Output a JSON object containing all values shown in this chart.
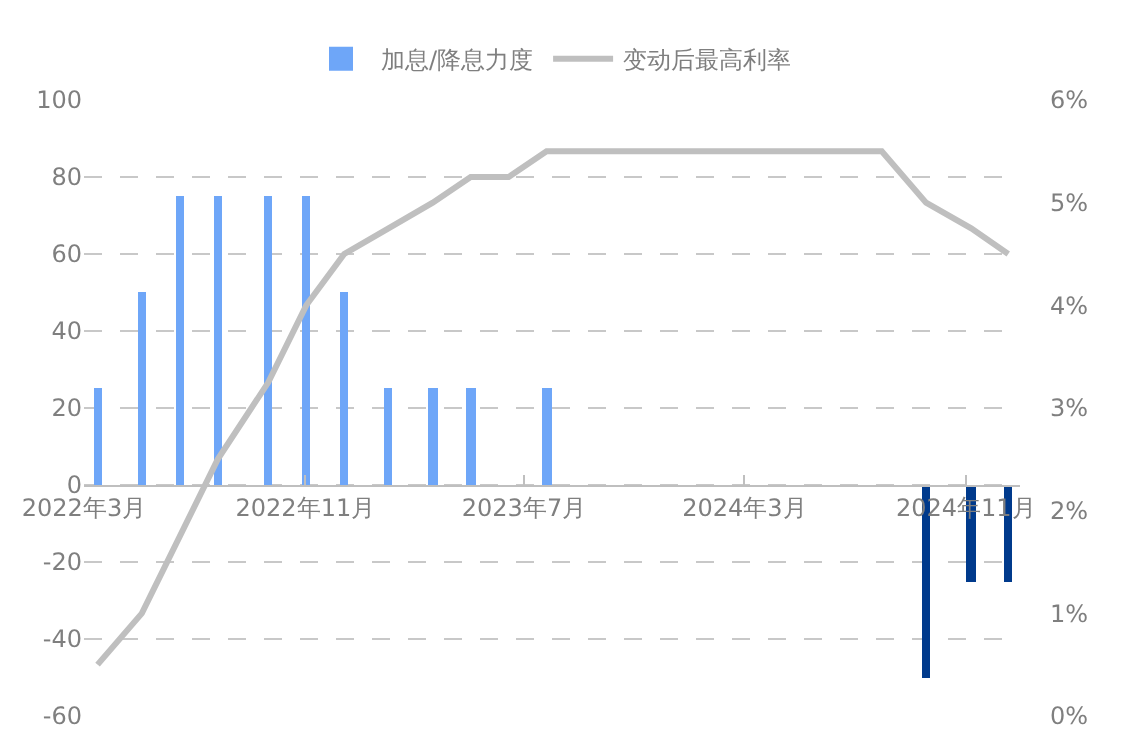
{
  "chart_data": {
    "type": "bar",
    "xlim": [
      "2022-03-01",
      "2024-12-31"
    ],
    "xticks": [
      {
        "value": "2022-03-01",
        "label": "2022年3月"
      },
      {
        "value": "2022-11-01",
        "label": "2022年11月"
      },
      {
        "value": "2023-07-01",
        "label": "2023年7月"
      },
      {
        "value": "2024-03-01",
        "label": "2024年3月"
      },
      {
        "value": "2024-11-01",
        "label": "2024年11月"
      }
    ],
    "ylim": [
      -60,
      100
    ],
    "yticks": [
      -60,
      -40,
      -20,
      0,
      20,
      40,
      60,
      80,
      100
    ],
    "y2lim": [
      0,
      6
    ],
    "y2ticks": [
      {
        "value": 0,
        "label": "0%"
      },
      {
        "value": 1,
        "label": "1%"
      },
      {
        "value": 2,
        "label": "2%"
      },
      {
        "value": 3,
        "label": "3%"
      },
      {
        "value": 4,
        "label": "4%"
      },
      {
        "value": 5,
        "label": "5%"
      },
      {
        "value": 6,
        "label": "6%"
      }
    ],
    "grid": "y",
    "legend": "top",
    "series": [
      {
        "name": "加息/降息力度",
        "color": "#6ea6f8",
        "x": [
          "2022-03-16",
          "2022-05-04",
          "2022-06-15",
          "2022-07-27",
          "2022-09-21",
          "2022-11-02",
          "2022-12-14",
          "2023-02-01",
          "2023-03-22",
          "2023-05-03",
          "2023-07-26",
          "2024-09-18",
          "2024-11-07",
          "2024-12-18"
        ],
        "values": [
          25,
          50,
          75,
          75,
          75,
          75,
          50,
          25,
          25,
          25,
          25,
          -50,
          -25,
          -25
        ],
        "colors": [
          null,
          null,
          null,
          null,
          null,
          null,
          null,
          null,
          null,
          null,
          null,
          "#003a8c",
          "#003a8c",
          "#003a8c"
        ]
      },
      {
        "name": "变动后最高利率",
        "type": "line",
        "axis": "y2",
        "color": "#bfbfbf",
        "x": [
          "2022-03-16",
          "2022-05-04",
          "2022-06-15",
          "2022-07-27",
          "2022-09-21",
          "2022-11-02",
          "2022-12-14",
          "2023-02-01",
          "2023-03-22",
          "2023-05-03",
          "2023-06-14",
          "2023-07-26",
          "2024-07-31",
          "2024-09-18",
          "2024-11-07",
          "2024-12-18"
        ],
        "values": [
          0.5,
          1.0,
          1.75,
          2.5,
          3.25,
          4.0,
          4.5,
          4.75,
          5.0,
          5.25,
          5.25,
          5.5,
          5.5,
          5.0,
          4.75,
          4.5
        ]
      }
    ]
  }
}
